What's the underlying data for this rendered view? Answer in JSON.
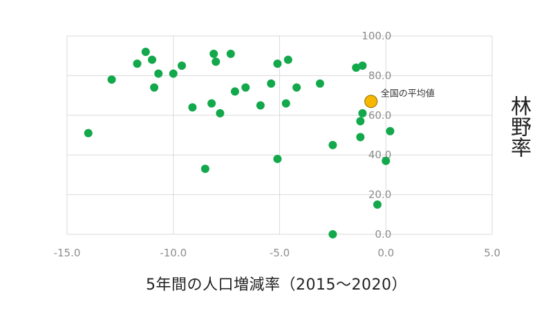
{
  "chart_data": {
    "type": "scatter",
    "title": "",
    "xlabel": "5年間の人口増減率（2015〜2020）",
    "ylabel": "林野率",
    "xlim": [
      -15,
      5
    ],
    "ylim": [
      0,
      100
    ],
    "x_ticks": [
      "-15.0",
      "-10.0",
      "-5.0",
      "0.0",
      "5.0"
    ],
    "y_ticks": [
      "0.0",
      "20.0",
      "40.0",
      "60.0",
      "80.0",
      "100.0"
    ],
    "grid": true,
    "series": [
      {
        "color": "#12a84b",
        "points": [
          {
            "x": -14.0,
            "y": 51
          },
          {
            "x": -12.9,
            "y": 78
          },
          {
            "x": -11.7,
            "y": 86
          },
          {
            "x": -11.3,
            "y": 92
          },
          {
            "x": -11.0,
            "y": 88
          },
          {
            "x": -10.9,
            "y": 74
          },
          {
            "x": -10.7,
            "y": 81
          },
          {
            "x": -10.0,
            "y": 81
          },
          {
            "x": -9.6,
            "y": 85
          },
          {
            "x": -9.1,
            "y": 64
          },
          {
            "x": -8.5,
            "y": 33
          },
          {
            "x": -8.2,
            "y": 66
          },
          {
            "x": -8.1,
            "y": 91
          },
          {
            "x": -8.0,
            "y": 87
          },
          {
            "x": -7.8,
            "y": 61
          },
          {
            "x": -7.3,
            "y": 91
          },
          {
            "x": -7.1,
            "y": 72
          },
          {
            "x": -6.6,
            "y": 74
          },
          {
            "x": -5.9,
            "y": 65
          },
          {
            "x": -5.4,
            "y": 76
          },
          {
            "x": -5.1,
            "y": 86
          },
          {
            "x": -5.1,
            "y": 38
          },
          {
            "x": -4.7,
            "y": 66
          },
          {
            "x": -4.6,
            "y": 88
          },
          {
            "x": -4.2,
            "y": 74
          },
          {
            "x": -3.1,
            "y": 76
          },
          {
            "x": -2.5,
            "y": 45
          },
          {
            "x": -2.5,
            "y": 0
          },
          {
            "x": -1.4,
            "y": 84
          },
          {
            "x": -1.1,
            "y": 85
          },
          {
            "x": -1.1,
            "y": 61
          },
          {
            "x": -1.2,
            "y": 57
          },
          {
            "x": -1.2,
            "y": 49
          },
          {
            "x": -0.4,
            "y": 15
          },
          {
            "x": 0.0,
            "y": 37
          },
          {
            "x": 0.2,
            "y": 52
          }
        ]
      },
      {
        "name": "全国の平均値",
        "color": "#f5b700",
        "points": [
          {
            "x": -0.7,
            "y": 67
          }
        ]
      }
    ]
  }
}
